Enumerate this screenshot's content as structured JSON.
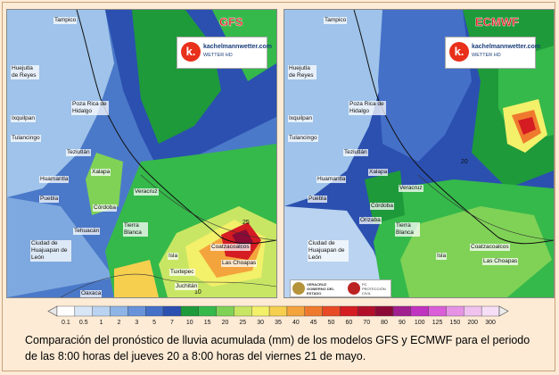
{
  "panels": {
    "gfs": {
      "model": "GFS"
    },
    "ecmwf": {
      "model": "ECMWF"
    }
  },
  "logo": {
    "line1": "kachelmannwetter.com",
    "line2": "WETTER HD",
    "mark": "k."
  },
  "labels": {
    "gfs": [
      "Tampico",
      "Huejutla de Reyes",
      "Poza Rica de Hidalgo",
      "Tulancingo",
      "Teziutlán",
      "Xalapa",
      "Puebla",
      "Veracruz",
      "Córdoba",
      "Tehuacán",
      "Tierra Blanca",
      "Oaxaca",
      "Coatzacoalcos",
      "Las Choapas",
      "Isla",
      "Tuxtepec",
      "Juchitán",
      "Ixquilpan",
      "Huamantla",
      "Ciudad de Huajuapan de León"
    ],
    "ecmwf": [
      "Tampico",
      "Huejutla de Reyes",
      "Poza Rica de Hidalgo",
      "Tulancingo",
      "Teziutlán",
      "Xalapa",
      "Puebla",
      "Veracruz",
      "Córdoba",
      "Orizaba",
      "Tierra Blanca",
      "Coatzacoalcos",
      "Las Choapas",
      "Isla",
      "Ixquilpan",
      "Huamantla",
      "Ciudad de Huajuapan de León"
    ]
  },
  "contour_labels": {
    "gfs": [
      "25",
      "10"
    ],
    "ecmwf": [
      "20"
    ]
  },
  "gov_logo": {
    "left_text": "VERACRUZ GOBIERNO DEL ESTADO",
    "right_text": "PC PROTECCIÓN CIVIL"
  },
  "legend": {
    "ticks": [
      "0.1",
      "0.5",
      "1",
      "2",
      "3",
      "5",
      "7",
      "10",
      "15",
      "20",
      "25",
      "30",
      "35",
      "40",
      "45",
      "50",
      "60",
      "70",
      "80",
      "90",
      "100",
      "125",
      "150",
      "200",
      "300"
    ],
    "colors": [
      "#ffffff",
      "#d8e6f6",
      "#b9d3f0",
      "#8fb5e7",
      "#6893da",
      "#4470c8",
      "#2b50b0",
      "#1e9a3a",
      "#35b94a",
      "#7fd256",
      "#c8e664",
      "#f3f06a",
      "#f6cf4e",
      "#f4a43c",
      "#ef7a2e",
      "#e74a24",
      "#d41c22",
      "#b10f2a",
      "#8c0a36",
      "#a0208f",
      "#c033c0",
      "#d95ed8",
      "#e693e6",
      "#efc2ef",
      "#f6dff6"
    ]
  },
  "caption": "Comparación del pronóstico de lluvia acumulada (mm) de los modelos GFS y ECMWF para el periodo de las 8:00 horas del jueves 20 a 8:00 horas del viernes 21 de mayo."
}
